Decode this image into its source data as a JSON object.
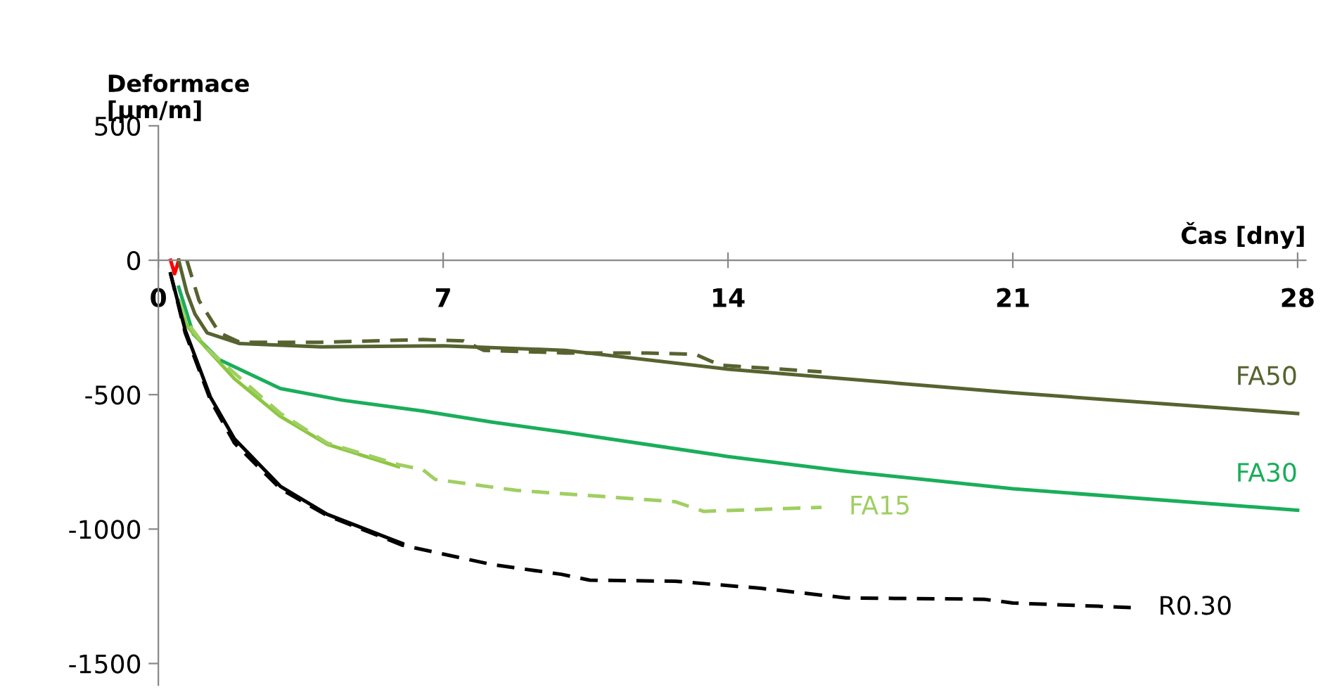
{
  "chart_data": {
    "type": "line",
    "ylabel": "Deformace\n[µm/m]",
    "xlabel": "Čas [dny]",
    "xlim": [
      0,
      28.2
    ],
    "xticks": [
      0,
      7,
      14,
      21,
      28
    ],
    "ylim": [
      -1580,
      500
    ],
    "yticks": [
      500,
      0,
      -500,
      -1000,
      -1500
    ],
    "grid": false,
    "legend": false,
    "marker": "none",
    "series": [
      {
        "color": "#ff0000",
        "line_style": "solid",
        "x": [
          0.3,
          0.4,
          0.5
        ],
        "values": [
          0,
          -50,
          0
        ]
      },
      {
        "name": "FA50",
        "color": "#566330",
        "line_style": "solid",
        "x": [
          0.5,
          0.7,
          0.9,
          1.2,
          2,
          4,
          7,
          10,
          14,
          21,
          28
        ],
        "values": [
          0,
          -120,
          -200,
          -270,
          -310,
          -322,
          -318,
          -335,
          -405,
          -493,
          -570
        ]
      },
      {
        "color": "#566330",
        "line_style": "dashed",
        "x": [
          0.7,
          1.0,
          1.5,
          2,
          4,
          6.5,
          7.5,
          8,
          10,
          12,
          13.2,
          13.8,
          16.3
        ],
        "values": [
          0,
          -150,
          -270,
          -305,
          -305,
          -295,
          -300,
          -335,
          -345,
          -345,
          -350,
          -390,
          -415
        ]
      },
      {
        "name": "FA30",
        "color": "#1aae5a",
        "x": [
          0.5,
          0.86,
          1.5,
          3,
          4.5,
          6.5,
          8.2,
          10,
          14,
          16.9,
          21,
          28
        ],
        "line_style": "solid",
        "values": [
          -100,
          -275,
          -370,
          -477,
          -520,
          -561,
          -602,
          -640,
          -730,
          -785,
          -850,
          -930
        ]
      },
      {
        "color": "#8cc63f",
        "line_style": "solid",
        "x": [
          0.5,
          0.7,
          1.2,
          1.87,
          3,
          4.15,
          5.9
        ],
        "values": [
          -150,
          -244,
          -330,
          -441,
          -581,
          -685,
          -768
        ]
      },
      {
        "name": "FA15",
        "color": "#9fcf62",
        "line_style": "dashed",
        "x": [
          0.5,
          0.7,
          1.2,
          1.87,
          3,
          4.15,
          5.9,
          6.5,
          6.8,
          8.8,
          12.7,
          13.4,
          16.3
        ],
        "values": [
          -150,
          -230,
          -330,
          -420,
          -570,
          -680,
          -760,
          -779,
          -815,
          -856,
          -898,
          -934,
          -919
        ]
      },
      {
        "color": "#000000",
        "line_style": "solid",
        "x": [
          0.3,
          0.66,
          1.28,
          1.87,
          3,
          4.15,
          6.0
        ],
        "values": [
          -50,
          -260,
          -509,
          -664,
          -841,
          -945,
          -1054
        ]
      },
      {
        "name": "R0.30",
        "color": "#000000",
        "line_style": "dashed",
        "x": [
          0.3,
          0.66,
          1.28,
          1.87,
          3,
          4.15,
          6.0,
          8.2,
          9.9,
          10.6,
          12.7,
          14.8,
          16.9,
          20.3,
          21,
          23.1,
          23.9
        ],
        "values": [
          -50,
          -270,
          -520,
          -680,
          -850,
          -950,
          -1060,
          -1132,
          -1168,
          -1190,
          -1194,
          -1220,
          -1256,
          -1261,
          -1275,
          -1287,
          -1292
        ]
      }
    ]
  }
}
